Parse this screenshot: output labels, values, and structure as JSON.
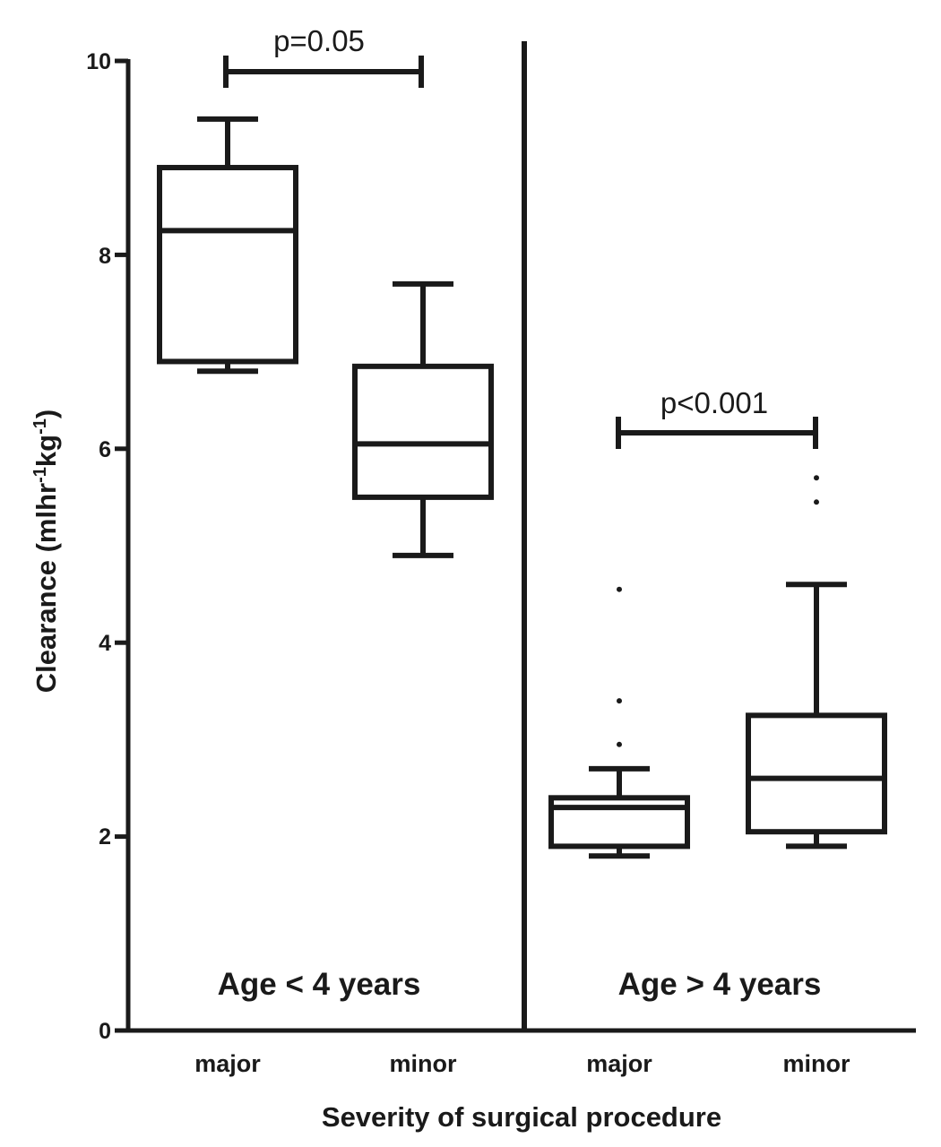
{
  "chart_data": {
    "type": "boxplot",
    "xlabel": "Severity of surgical procedure",
    "ylabel": "Clearance (mlhr-1kg-1)",
    "ylabel_parts": [
      "Clearance (mlhr",
      "-1",
      "kg",
      "-1",
      ")"
    ],
    "ylim": [
      0,
      10
    ],
    "yticks": [
      0,
      2,
      4,
      6,
      8,
      10
    ],
    "yticks_labels": [
      "0",
      "2",
      "4",
      "6",
      "8",
      "10"
    ],
    "panels": [
      {
        "label": "Age < 4 years",
        "comparison": "p=0.05",
        "groups": [
          {
            "category": "major",
            "whisker_low": 6.8,
            "q1": 6.9,
            "median": 8.25,
            "q3": 8.9,
            "whisker_high": 9.4,
            "outliers": []
          },
          {
            "category": "minor",
            "whisker_low": 4.9,
            "q1": 5.5,
            "median": 6.05,
            "q3": 6.85,
            "whisker_high": 7.7,
            "outliers": []
          }
        ]
      },
      {
        "label": "Age > 4 years",
        "comparison": "p<0.001",
        "groups": [
          {
            "category": "major",
            "whisker_low": 1.8,
            "q1": 1.9,
            "median": 2.3,
            "q3": 2.4,
            "whisker_high": 2.7,
            "outliers": [
              2.95,
              3.4,
              4.55
            ]
          },
          {
            "category": "minor",
            "whisker_low": 1.9,
            "q1": 2.05,
            "median": 2.6,
            "q3": 3.25,
            "whisker_high": 4.6,
            "outliers": [
              5.45,
              5.7
            ]
          }
        ]
      }
    ]
  }
}
